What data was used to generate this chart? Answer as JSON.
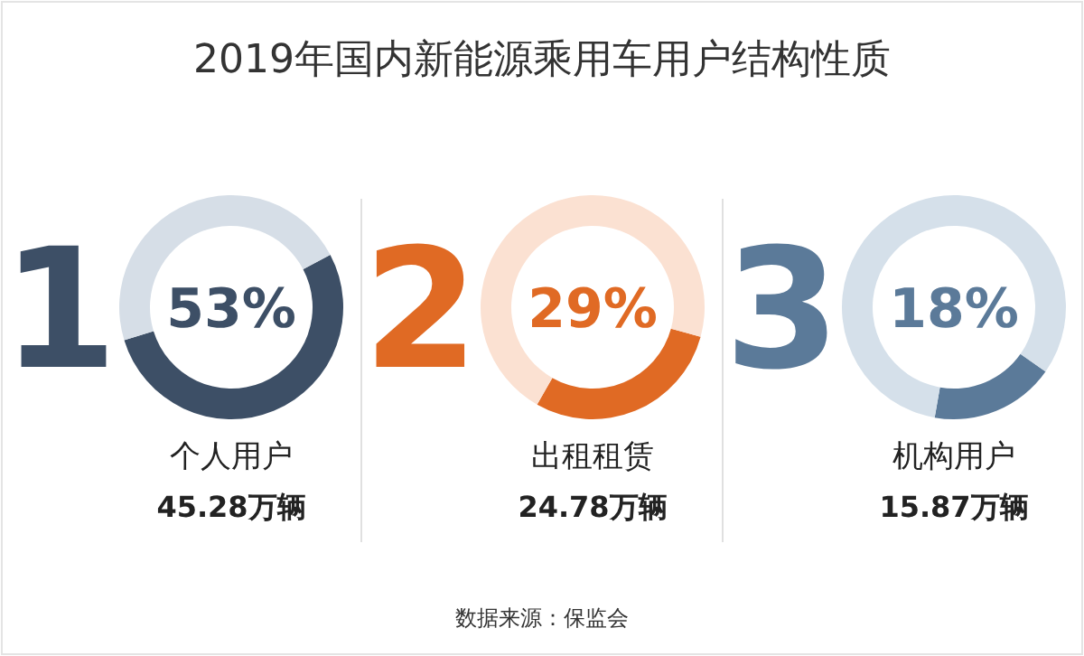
{
  "chart_data": [
    {
      "type": "donut",
      "title": "2019年国内新能源乘用车用户结构性质",
      "categories": [
        "个人用户",
        null
      ],
      "values": [
        53,
        47
      ],
      "colors": [
        "#3d4f66",
        "#d6dee7"
      ],
      "value_labels": [
        "53%",
        null
      ],
      "subtitle": "45.28万辆",
      "annotations": [
        "1"
      ]
    },
    {
      "type": "donut",
      "categories": [
        "出租租赁",
        null
      ],
      "values": [
        29,
        71
      ],
      "colors": [
        "#e06a24",
        "#fbe1d2"
      ],
      "value_labels": [
        "29%",
        null
      ],
      "subtitle": "24.78万辆",
      "annotations": [
        "2"
      ]
    },
    {
      "type": "donut",
      "categories": [
        "机构用户",
        null
      ],
      "values": [
        18,
        82
      ],
      "colors": [
        "#5b7a99",
        "#d5e0ea"
      ],
      "value_labels": [
        "18%",
        null
      ],
      "subtitle": "15.87万辆",
      "annotations": [
        "3",
        "数据来源：保监会"
      ]
    }
  ]
}
